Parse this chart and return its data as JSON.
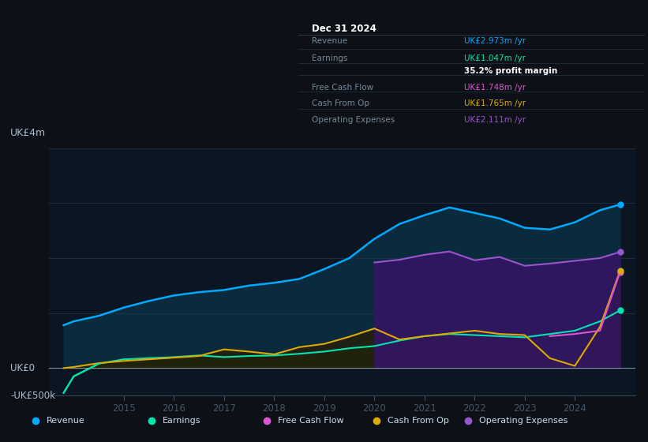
{
  "bg_color": "#0d1117",
  "plot_bg_color": "#0b1622",
  "title_box": {
    "date": "Dec 31 2024",
    "rows": [
      {
        "label": "Revenue",
        "value": "UK£2.973m /yr",
        "value_color": "#00aaff"
      },
      {
        "label": "Earnings",
        "value": "UK£1.047m /yr",
        "value_color": "#00e5b0"
      },
      {
        "label": "",
        "value": "35.2% profit margin",
        "value_color": "#ffffff"
      },
      {
        "label": "Free Cash Flow",
        "value": "UK£1.748m /yr",
        "value_color": "#dd55cc"
      },
      {
        "label": "Cash From Op",
        "value": "UK£1.765m /yr",
        "value_color": "#ddaa00"
      },
      {
        "label": "Operating Expenses",
        "value": "UK£2.111m /yr",
        "value_color": "#9955cc"
      }
    ]
  },
  "ylabel": "UK£4m",
  "y0label": "UK£0",
  "ynlabel": "-UK£500k",
  "years": [
    2013.8,
    2014.0,
    2014.5,
    2015.0,
    2015.5,
    2016.0,
    2016.5,
    2017.0,
    2017.5,
    2018.0,
    2018.5,
    2019.0,
    2019.5,
    2020.0,
    2020.5,
    2021.0,
    2021.5,
    2022.0,
    2022.5,
    2023.0,
    2023.5,
    2024.0,
    2024.5,
    2024.9
  ],
  "revenue": [
    0.78,
    0.85,
    0.95,
    1.1,
    1.22,
    1.32,
    1.38,
    1.42,
    1.5,
    1.55,
    1.62,
    1.8,
    2.0,
    2.35,
    2.62,
    2.78,
    2.92,
    2.82,
    2.72,
    2.55,
    2.52,
    2.65,
    2.87,
    2.973
  ],
  "earnings": [
    -0.45,
    -0.15,
    0.08,
    0.16,
    0.18,
    0.2,
    0.23,
    0.2,
    0.22,
    0.23,
    0.26,
    0.3,
    0.36,
    0.4,
    0.5,
    0.58,
    0.62,
    0.6,
    0.58,
    0.56,
    0.62,
    0.68,
    0.85,
    1.047
  ],
  "cash_from_op": [
    0.0,
    0.02,
    0.09,
    0.13,
    0.16,
    0.19,
    0.22,
    0.34,
    0.3,
    0.25,
    0.38,
    0.44,
    0.57,
    0.72,
    0.52,
    0.58,
    0.63,
    0.68,
    0.62,
    0.6,
    0.18,
    0.04,
    0.75,
    1.765
  ],
  "free_cash_flow": [
    0.0,
    0.0,
    0.0,
    0.0,
    0.0,
    0.0,
    0.0,
    0.0,
    0.0,
    0.0,
    0.0,
    0.0,
    0.0,
    0.0,
    0.0,
    0.0,
    0.0,
    0.0,
    0.0,
    0.0,
    0.0,
    0.0,
    0.0,
    1.748
  ],
  "op_expenses": [
    0.0,
    0.0,
    0.0,
    0.0,
    0.0,
    0.0,
    0.0,
    0.0,
    0.0,
    0.0,
    0.0,
    0.0,
    0.0,
    1.92,
    1.97,
    2.06,
    2.12,
    1.96,
    2.02,
    1.86,
    1.9,
    1.95,
    2.0,
    2.111
  ],
  "revenue_color": "#00aaff",
  "earnings_color": "#00e5b0",
  "fcf_color": "#dd55cc",
  "cop_color": "#ddaa00",
  "opex_color": "#9955cc",
  "ylim": [
    -0.5,
    4.0
  ],
  "xlim": [
    2013.5,
    2025.2
  ],
  "xticks": [
    2015,
    2016,
    2017,
    2018,
    2019,
    2020,
    2021,
    2022,
    2023,
    2024
  ],
  "legend_items": [
    {
      "label": "Revenue",
      "color": "#00aaff"
    },
    {
      "label": "Earnings",
      "color": "#00e5b0"
    },
    {
      "label": "Free Cash Flow",
      "color": "#dd55cc"
    },
    {
      "label": "Cash From Op",
      "color": "#ddaa00"
    },
    {
      "label": "Operating Expenses",
      "color": "#9955cc"
    }
  ]
}
